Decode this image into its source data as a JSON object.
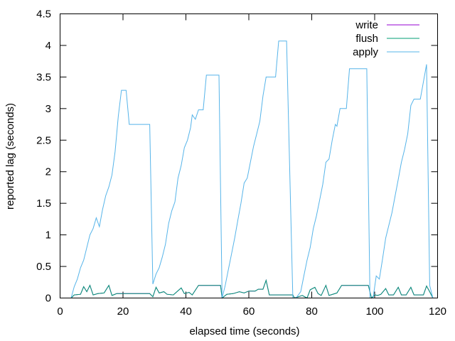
{
  "chart_data": {
    "type": "line",
    "title": "",
    "xlabel": "elapsed time (seconds)",
    "ylabel": "reported lag (seconds)",
    "xlim": [
      0,
      120
    ],
    "ylim": [
      0,
      4.5
    ],
    "xticks": [
      0,
      20,
      40,
      60,
      80,
      100,
      120
    ],
    "xtick_labels": [
      "0",
      "20",
      "40",
      "60",
      "80",
      "100",
      "120"
    ],
    "yticks": [
      0,
      0.5,
      1,
      1.5,
      2,
      2.5,
      3,
      3.5,
      4,
      4.5
    ],
    "ytick_labels": [
      "0",
      "0.5",
      "1",
      "1.5",
      "2",
      "2.5",
      "3",
      "3.5",
      "4",
      "4.5"
    ],
    "grid": false,
    "legend_position": "top-right",
    "series": [
      {
        "name": "write",
        "color": "#9400d3",
        "points": [
          [
            3.5,
            0.0
          ],
          [
            4.5,
            0.05
          ],
          [
            6.5,
            0.06
          ],
          [
            7.5,
            0.18
          ],
          [
            8.5,
            0.1
          ],
          [
            9.5,
            0.2
          ],
          [
            10.5,
            0.05
          ],
          [
            12,
            0.07
          ],
          [
            14,
            0.08
          ],
          [
            15.5,
            0.2
          ],
          [
            16.5,
            0.04
          ],
          [
            18,
            0.07
          ],
          [
            22,
            0.07
          ],
          [
            28.5,
            0.07
          ],
          [
            29.5,
            0.02
          ],
          [
            30.5,
            0.17
          ],
          [
            31.5,
            0.08
          ],
          [
            33,
            0.1
          ],
          [
            34,
            0.06
          ],
          [
            36,
            0.05
          ],
          [
            38.5,
            0.16
          ],
          [
            39.5,
            0.07
          ],
          [
            41,
            0.09
          ],
          [
            42,
            0.05
          ],
          [
            44,
            0.2
          ],
          [
            47,
            0.2
          ],
          [
            51,
            0.2
          ],
          [
            51.5,
            0.0
          ],
          [
            53,
            0.06
          ],
          [
            55,
            0.07
          ],
          [
            57,
            0.1
          ],
          [
            58.5,
            0.08
          ],
          [
            60,
            0.11
          ],
          [
            62,
            0.11
          ],
          [
            63,
            0.14
          ],
          [
            64.5,
            0.14
          ],
          [
            65.5,
            0.28
          ],
          [
            66.5,
            0.05
          ],
          [
            70,
            0.05
          ],
          [
            74,
            0.05
          ],
          [
            74.5,
            0.0
          ],
          [
            77,
            0.04
          ],
          [
            78.5,
            0.0
          ],
          [
            79.5,
            0.13
          ],
          [
            81,
            0.17
          ],
          [
            82,
            0.07
          ],
          [
            83,
            0.04
          ],
          [
            84.5,
            0.2
          ],
          [
            85.5,
            0.04
          ],
          [
            88,
            0.08
          ],
          [
            89.5,
            0.2
          ],
          [
            91,
            0.2
          ],
          [
            93,
            0.2
          ],
          [
            98,
            0.2
          ],
          [
            99,
            0.0
          ],
          [
            100,
            0.05
          ],
          [
            101,
            0.04
          ],
          [
            102,
            0.06
          ],
          [
            103.5,
            0.15
          ],
          [
            104.5,
            0.05
          ],
          [
            106,
            0.05
          ],
          [
            107.5,
            0.17
          ],
          [
            108.5,
            0.05
          ],
          [
            110,
            0.05
          ],
          [
            111.5,
            0.17
          ],
          [
            112.5,
            0.05
          ],
          [
            114,
            0.05
          ],
          [
            115.5,
            0.05
          ],
          [
            116.5,
            0.19
          ],
          [
            117.5,
            0.1
          ],
          [
            118.5,
            0.0
          ]
        ]
      },
      {
        "name": "flush",
        "color": "#009e73",
        "points": [
          [
            3.5,
            0.0
          ],
          [
            4.5,
            0.05
          ],
          [
            6.5,
            0.06
          ],
          [
            7.5,
            0.18
          ],
          [
            8.5,
            0.1
          ],
          [
            9.5,
            0.2
          ],
          [
            10.5,
            0.05
          ],
          [
            12,
            0.07
          ],
          [
            14,
            0.08
          ],
          [
            15.5,
            0.2
          ],
          [
            16.5,
            0.04
          ],
          [
            18,
            0.07
          ],
          [
            22,
            0.07
          ],
          [
            28.5,
            0.07
          ],
          [
            29.5,
            0.02
          ],
          [
            30.5,
            0.17
          ],
          [
            31.5,
            0.08
          ],
          [
            33,
            0.1
          ],
          [
            34,
            0.06
          ],
          [
            36,
            0.05
          ],
          [
            38.5,
            0.16
          ],
          [
            39.5,
            0.07
          ],
          [
            41,
            0.09
          ],
          [
            42,
            0.05
          ],
          [
            44,
            0.2
          ],
          [
            47,
            0.2
          ],
          [
            51,
            0.2
          ],
          [
            51.5,
            0.0
          ],
          [
            53,
            0.06
          ],
          [
            55,
            0.07
          ],
          [
            57,
            0.1
          ],
          [
            58.5,
            0.08
          ],
          [
            60,
            0.11
          ],
          [
            62,
            0.11
          ],
          [
            63,
            0.14
          ],
          [
            64.5,
            0.14
          ],
          [
            65.5,
            0.28
          ],
          [
            66.5,
            0.05
          ],
          [
            70,
            0.05
          ],
          [
            74,
            0.05
          ],
          [
            74.5,
            0.0
          ],
          [
            77,
            0.04
          ],
          [
            78.5,
            0.0
          ],
          [
            79.5,
            0.13
          ],
          [
            81,
            0.17
          ],
          [
            82,
            0.07
          ],
          [
            83,
            0.04
          ],
          [
            84.5,
            0.2
          ],
          [
            85.5,
            0.04
          ],
          [
            88,
            0.08
          ],
          [
            89.5,
            0.2
          ],
          [
            91,
            0.2
          ],
          [
            93,
            0.2
          ],
          [
            98,
            0.2
          ],
          [
            99,
            0.0
          ],
          [
            100,
            0.05
          ],
          [
            101,
            0.04
          ],
          [
            102,
            0.06
          ],
          [
            103.5,
            0.15
          ],
          [
            104.5,
            0.05
          ],
          [
            106,
            0.05
          ],
          [
            107.5,
            0.17
          ],
          [
            108.5,
            0.05
          ],
          [
            110,
            0.05
          ],
          [
            111.5,
            0.17
          ],
          [
            112.5,
            0.05
          ],
          [
            114,
            0.05
          ],
          [
            115.5,
            0.05
          ],
          [
            116.5,
            0.19
          ],
          [
            117.5,
            0.1
          ],
          [
            118.5,
            0.0
          ]
        ]
      },
      {
        "name": "apply",
        "color": "#56b4e9",
        "points": [
          [
            3.5,
            0.0
          ],
          [
            4.5,
            0.18
          ],
          [
            5.5,
            0.3
          ],
          [
            6.5,
            0.48
          ],
          [
            7.5,
            0.6
          ],
          [
            8.5,
            0.8
          ],
          [
            9.5,
            1.0
          ],
          [
            10.5,
            1.1
          ],
          [
            11.5,
            1.27
          ],
          [
            12.5,
            1.13
          ],
          [
            13.5,
            1.4
          ],
          [
            14.5,
            1.62
          ],
          [
            15.5,
            1.76
          ],
          [
            16.5,
            1.95
          ],
          [
            17.5,
            2.32
          ],
          [
            18.5,
            2.88
          ],
          [
            19.5,
            3.29
          ],
          [
            21,
            3.29
          ],
          [
            22,
            2.75
          ],
          [
            26,
            2.75
          ],
          [
            28.5,
            2.75
          ],
          [
            29.5,
            0.22
          ],
          [
            30.5,
            0.38
          ],
          [
            31.5,
            0.48
          ],
          [
            32.5,
            0.65
          ],
          [
            33.5,
            0.85
          ],
          [
            34.5,
            1.18
          ],
          [
            35.5,
            1.38
          ],
          [
            36.5,
            1.52
          ],
          [
            37.5,
            1.9
          ],
          [
            38.5,
            2.1
          ],
          [
            39.5,
            2.38
          ],
          [
            40.5,
            2.5
          ],
          [
            41.5,
            2.7
          ],
          [
            42,
            2.9
          ],
          [
            43,
            2.83
          ],
          [
            44,
            2.98
          ],
          [
            45.5,
            2.98
          ],
          [
            46.5,
            3.53
          ],
          [
            50.5,
            3.53
          ],
          [
            51.5,
            0.0
          ],
          [
            52.5,
            0.2
          ],
          [
            53.5,
            0.45
          ],
          [
            54.5,
            0.7
          ],
          [
            55.5,
            0.95
          ],
          [
            56.5,
            1.23
          ],
          [
            57.5,
            1.5
          ],
          [
            58.5,
            1.82
          ],
          [
            59.5,
            1.9
          ],
          [
            60.5,
            2.15
          ],
          [
            61.5,
            2.4
          ],
          [
            62.5,
            2.6
          ],
          [
            63.5,
            2.8
          ],
          [
            64.5,
            3.2
          ],
          [
            65.5,
            3.5
          ],
          [
            68.5,
            3.5
          ],
          [
            69.5,
            4.07
          ],
          [
            72,
            4.07
          ],
          [
            74,
            0.0
          ],
          [
            75,
            0.0
          ],
          [
            76.5,
            0.1
          ],
          [
            77.5,
            0.35
          ],
          [
            78.5,
            0.6
          ],
          [
            79.5,
            0.8
          ],
          [
            80.5,
            1.1
          ],
          [
            81.5,
            1.3
          ],
          [
            82.5,
            1.55
          ],
          [
            83.5,
            1.8
          ],
          [
            84.5,
            2.15
          ],
          [
            85.5,
            2.2
          ],
          [
            86.5,
            2.5
          ],
          [
            87.5,
            2.75
          ],
          [
            88,
            2.72
          ],
          [
            89,
            3.0
          ],
          [
            91,
            3.0
          ],
          [
            92,
            3.63
          ],
          [
            96,
            3.63
          ],
          [
            97.5,
            3.63
          ],
          [
            98.5,
            0.0
          ],
          [
            99.5,
            0.0
          ],
          [
            100.5,
            0.35
          ],
          [
            101.5,
            0.3
          ],
          [
            102.5,
            0.62
          ],
          [
            103.5,
            0.95
          ],
          [
            104.5,
            1.15
          ],
          [
            105.5,
            1.35
          ],
          [
            106.5,
            1.62
          ],
          [
            107.5,
            1.88
          ],
          [
            108.5,
            2.15
          ],
          [
            109.5,
            2.35
          ],
          [
            110.5,
            2.6
          ],
          [
            111.5,
            3.05
          ],
          [
            112.5,
            3.15
          ],
          [
            114.5,
            3.15
          ],
          [
            116.5,
            3.7
          ],
          [
            117.5,
            0.2
          ],
          [
            118.5,
            0.0
          ]
        ]
      }
    ]
  }
}
